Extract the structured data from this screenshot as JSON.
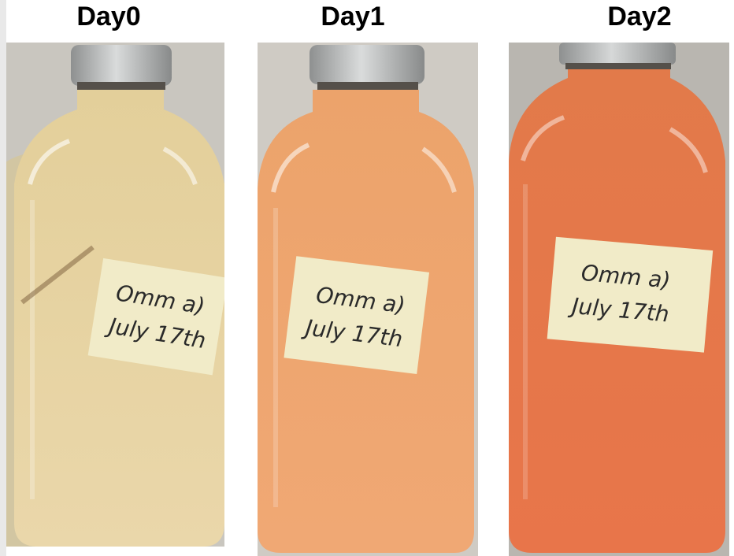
{
  "panels": [
    {
      "title": "Day0",
      "liquid_top": "#e3cf9a",
      "liquid_bottom": "#ead7aa",
      "background": "#c9c6bf",
      "label_line1": "Omm a)",
      "label_line2": "July 17th"
    },
    {
      "title": "Day1",
      "liquid_top": "#eca36b",
      "liquid_bottom": "#f0a874",
      "background": "#cfcbc4",
      "label_line1": "Omm a)",
      "label_line2": "July 17th"
    },
    {
      "title": "Day2",
      "liquid_top": "#e27a4a",
      "liquid_bottom": "#e8754a",
      "background": "#b9b6b0",
      "label_line1": "Omm a)",
      "label_line2": "July 17th"
    }
  ]
}
